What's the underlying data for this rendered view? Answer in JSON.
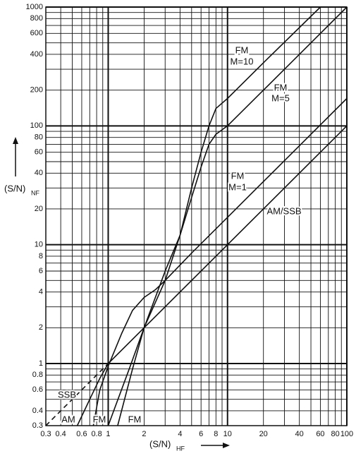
{
  "chart_data": {
    "type": "line",
    "log_x": true,
    "log_y": true,
    "color": "#111111",
    "xlabel": "(S/N)",
    "xlabel_sub": "HF",
    "ylabel": "(S/N)",
    "ylabel_sub": "NF",
    "xlim": [
      0.3,
      100
    ],
    "ylim": [
      0.3,
      1000
    ],
    "xticks": [
      0.3,
      0.4,
      0.6,
      0.8,
      1,
      2,
      4,
      6,
      8,
      10,
      20,
      40,
      60,
      80,
      100
    ],
    "yticks": [
      0.3,
      0.4,
      0.6,
      0.8,
      1,
      2,
      4,
      6,
      8,
      10,
      20,
      40,
      60,
      80,
      100,
      200,
      400,
      600,
      800,
      1000
    ],
    "xgrid": [
      0.3,
      0.4,
      0.5,
      0.6,
      0.7,
      0.8,
      0.9,
      1,
      2,
      3,
      4,
      5,
      6,
      7,
      8,
      9,
      10,
      20,
      30,
      40,
      50,
      60,
      70,
      80,
      90,
      100
    ],
    "ygrid": [
      0.3,
      0.4,
      0.5,
      0.6,
      0.7,
      0.8,
      0.9,
      1,
      2,
      3,
      4,
      5,
      6,
      7,
      8,
      9,
      10,
      20,
      30,
      40,
      50,
      60,
      70,
      80,
      90,
      100,
      200,
      300,
      400,
      500,
      600,
      700,
      800,
      900,
      1000
    ],
    "series": [
      {
        "labels": [
          "AM/SSB"
        ],
        "dash": false,
        "x": [
          1,
          100
        ],
        "values": [
          1,
          100
        ]
      },
      {
        "labels": [
          "SSB"
        ],
        "dash": true,
        "x": [
          0.3,
          1
        ],
        "values": [
          0.3,
          1
        ]
      },
      {
        "labels": [
          "AM"
        ],
        "dash": false,
        "x": [
          0.55,
          0.7,
          0.85,
          1
        ],
        "values": [
          0.3,
          0.5,
          0.75,
          1
        ]
      },
      {
        "labels": [
          "FM",
          "M=1"
        ],
        "dash": false,
        "x": [
          0.75,
          0.85,
          1,
          1.3,
          1.6,
          2,
          2.5,
          3,
          5,
          10,
          20,
          50,
          100
        ],
        "values": [
          0.3,
          0.6,
          0.95,
          1.8,
          2.8,
          3.6,
          4.2,
          5,
          8.5,
          17,
          34,
          85,
          170
        ]
      },
      {
        "labels": [
          "FM",
          "M=5"
        ],
        "dash": false,
        "x": [
          1,
          1.5,
          2,
          3,
          4,
          5,
          6,
          7,
          8,
          10,
          20,
          50,
          100
        ],
        "values": [
          0.3,
          0.9,
          2,
          6,
          12,
          25,
          45,
          70,
          85,
          100,
          200,
          500,
          1000
        ]
      },
      {
        "labels": [
          "FM",
          "M=10"
        ],
        "dash": false,
        "x": [
          1.2,
          1.6,
          2,
          3,
          4,
          5,
          6,
          7,
          8,
          10,
          20,
          60
        ],
        "values": [
          0.3,
          0.9,
          2,
          5,
          12,
          30,
          60,
          100,
          140,
          170,
          340,
          1000
        ]
      }
    ],
    "annotations": [
      "FM",
      "FM"
    ]
  }
}
